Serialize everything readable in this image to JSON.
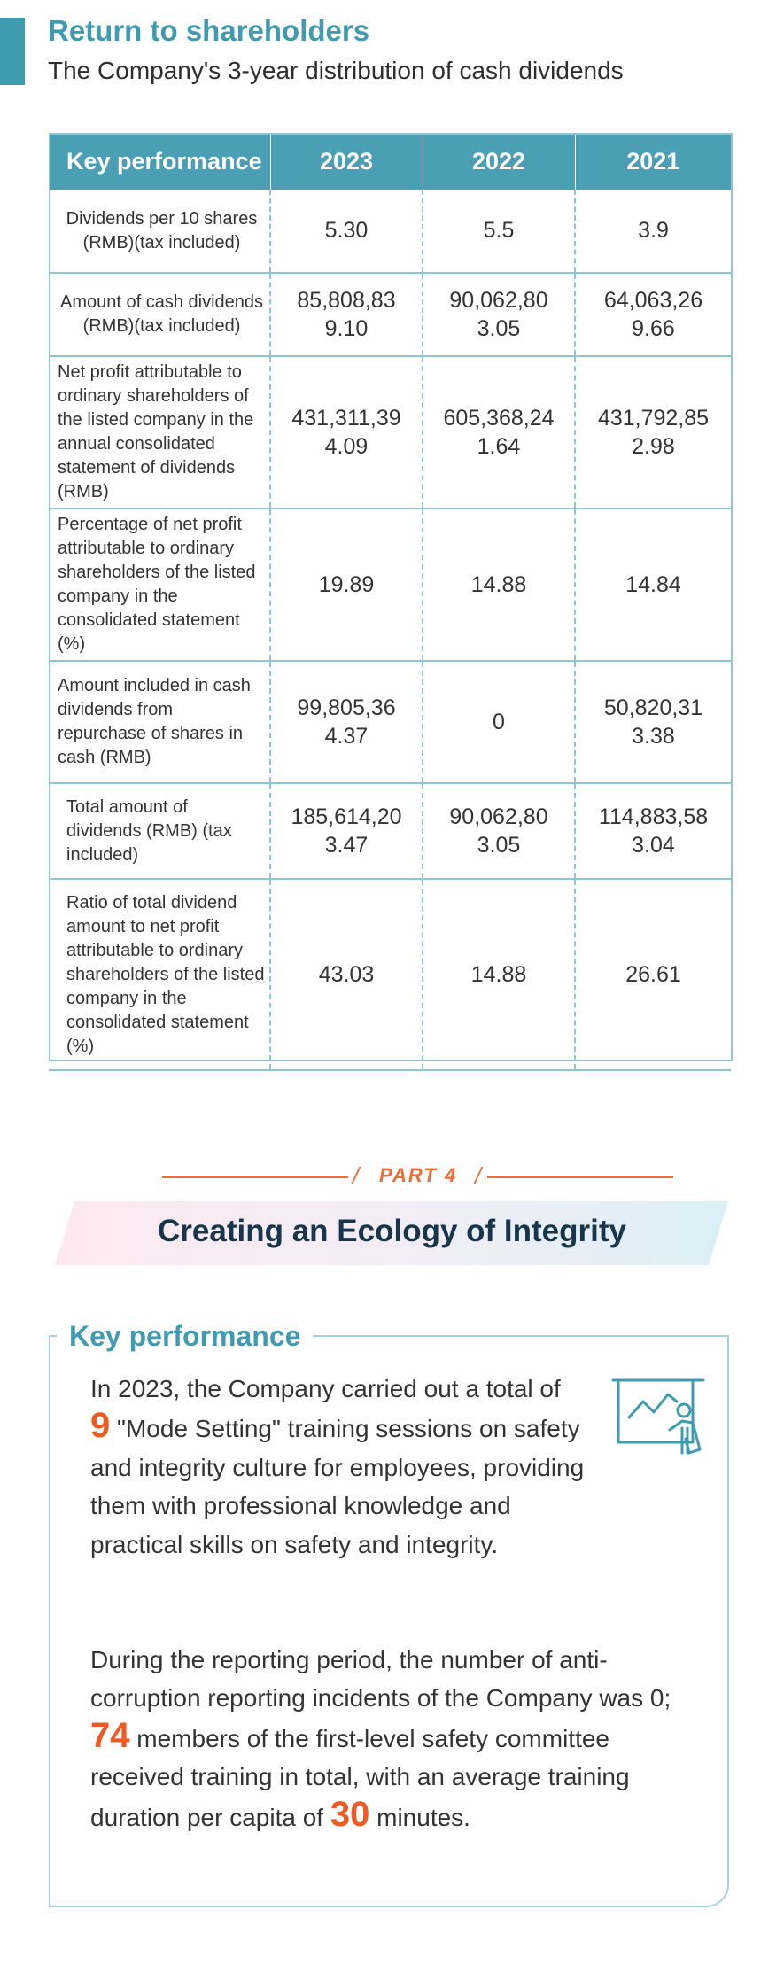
{
  "section": {
    "title": "Return to shareholders",
    "subtitle": "The Company's 3-year distribution of cash dividends"
  },
  "table": {
    "headers": [
      "Key performance",
      "2023",
      "2022",
      "2021"
    ],
    "rows": [
      {
        "label": "Dividends per 10 shares (RMB)(tax included)",
        "v2023": "5.30",
        "v2022": "5.5",
        "v2021": "3.9"
      },
      {
        "label": "Amount of cash dividends (RMB)(tax included)",
        "v2023": "85,808,839.10",
        "v2022": "90,062,803.05",
        "v2021": "64,063,269.66"
      },
      {
        "label": "Net profit attributable to ordinary shareholders of the listed company in the annual consolidated statement of dividends (RMB)",
        "v2023": "431,311,394.09",
        "v2022": "605,368,241.64",
        "v2021": "431,792,852.98"
      },
      {
        "label": "Percentage of net profit attributable to ordinary shareholders of the listed company in the consolidated statement (%)",
        "v2023": "19.89",
        "v2022": "14.88",
        "v2021": "14.84"
      },
      {
        "label": "Amount included in cash dividends from repurchase of shares in cash (RMB)",
        "v2023": "99,805,364.37",
        "v2022": "0",
        "v2021": "50,820,313.38"
      },
      {
        "label": "Total amount of dividends (RMB) (tax included)",
        "v2023": "185,614,203.47",
        "v2022": "90,062,803.05",
        "v2021": "114,883,583.04"
      },
      {
        "label": "Ratio of total dividend amount to net profit attributable to ordinary shareholders of the listed company in the consolidated statement (%)",
        "v2023": "43.03",
        "v2022": "14.88",
        "v2021": "26.61"
      }
    ]
  },
  "part": {
    "label": "PART 4",
    "title": "Creating an Ecology of Integrity"
  },
  "key_performance": {
    "title": "Key performance",
    "p1_before": "In 2023, the Company carried out a total of",
    "p1_num": "9",
    "p1_after": "\"Mode Setting\" training sessions on safety and integrity culture for employees, providing them with professional knowledge and practical skills on safety and integrity.",
    "p2_before": "During the reporting period, the number of anti-corruption reporting incidents of the Company was 0;",
    "p2_num1": "74",
    "p2_mid": "members of the first-level safety committee received training in total, with an average training duration per capita of",
    "p2_num2": "30",
    "p2_after": "minutes.",
    "icon": "presentation-board-icon"
  },
  "colors": {
    "accent": "#3f9bb0",
    "header_bg": "#4a9fb5",
    "highlight": "#ef5a22",
    "title_dark": "#17364c"
  }
}
